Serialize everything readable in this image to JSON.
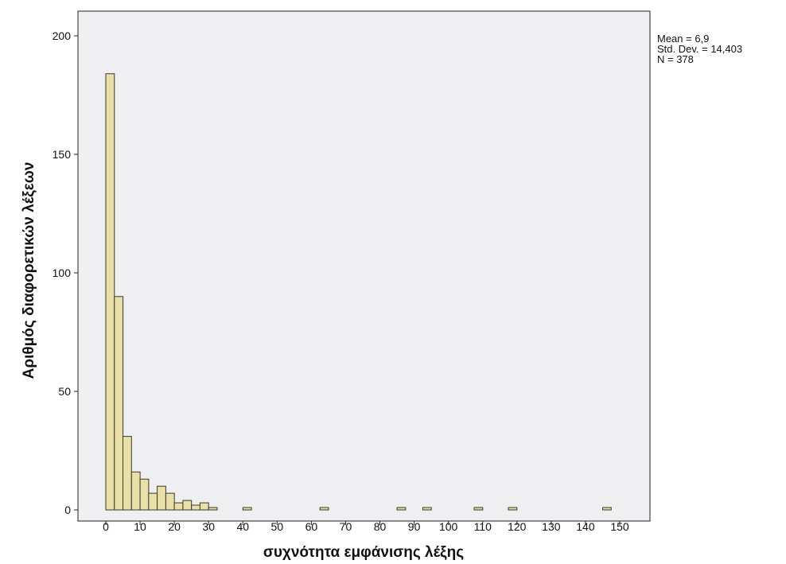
{
  "chart_data": {
    "type": "bar",
    "histogram": true,
    "xlabel": "συχνότητα εμφάνισης λέξης",
    "ylabel": "Αριθμός διαφορετικών λέξεων",
    "xlim": [
      -3,
      155
    ],
    "ylim": [
      0,
      210
    ],
    "xticks": [
      0,
      10,
      20,
      30,
      40,
      50,
      60,
      70,
      80,
      90,
      100,
      110,
      120,
      130,
      140,
      150
    ],
    "yticks": [
      0,
      50,
      100,
      150,
      200
    ],
    "bin_width": 2.5,
    "bins": [
      {
        "start": 0,
        "count": 184
      },
      {
        "start": 2.5,
        "count": 90
      },
      {
        "start": 5,
        "count": 31
      },
      {
        "start": 7.5,
        "count": 16
      },
      {
        "start": 10,
        "count": 13
      },
      {
        "start": 12.5,
        "count": 7
      },
      {
        "start": 15,
        "count": 10
      },
      {
        "start": 17.5,
        "count": 7
      },
      {
        "start": 20,
        "count": 3
      },
      {
        "start": 22.5,
        "count": 4
      },
      {
        "start": 25,
        "count": 2
      },
      {
        "start": 27.5,
        "count": 3
      },
      {
        "start": 30,
        "count": 1
      },
      {
        "start": 40,
        "count": 1
      },
      {
        "start": 62.5,
        "count": 1
      },
      {
        "start": 85,
        "count": 1
      },
      {
        "start": 92.5,
        "count": 1
      },
      {
        "start": 107.5,
        "count": 1
      },
      {
        "start": 117.5,
        "count": 1
      },
      {
        "start": 145,
        "count": 1
      }
    ],
    "bar_color": "#e8e0a8",
    "bar_edge_color": "#3a3a2a",
    "plot_background": "#efeff2",
    "grid": false,
    "legend_position": "top-right",
    "stats": {
      "mean_label": "Mean = 6,9",
      "std_label": "Std. Dev. = 14,403",
      "n_label": "N = 378"
    }
  }
}
